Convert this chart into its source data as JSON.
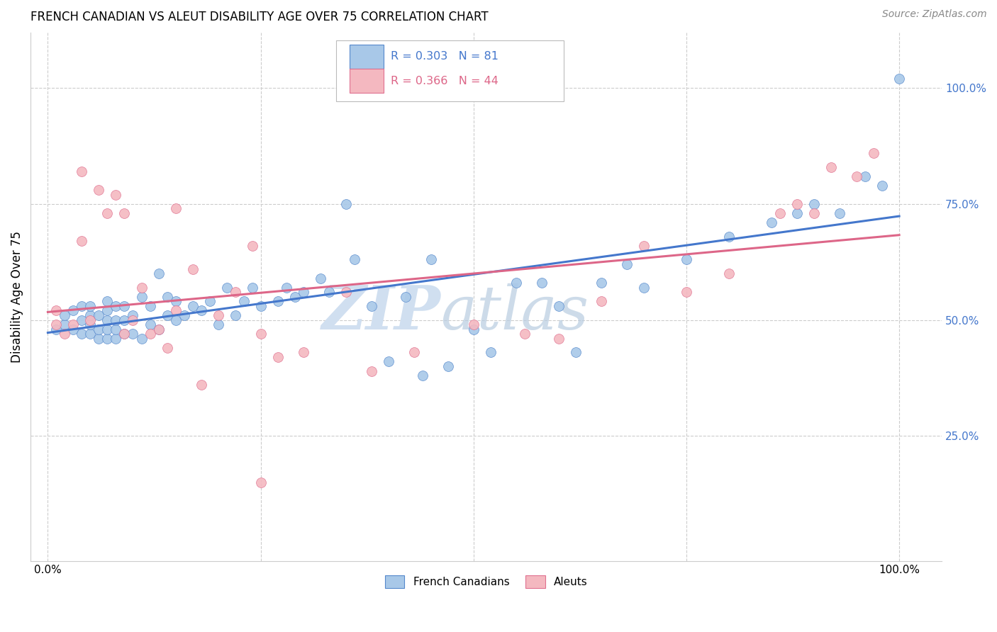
{
  "title": "FRENCH CANADIAN VS ALEUT DISABILITY AGE OVER 75 CORRELATION CHART",
  "source_text": "Source: ZipAtlas.com",
  "ylabel": "Disability Age Over 75",
  "xlim": [
    -0.02,
    1.05
  ],
  "ylim": [
    -0.02,
    1.12
  ],
  "x_ticks": [
    0.0,
    0.25,
    0.5,
    0.75,
    1.0
  ],
  "x_tick_labels": [
    "0.0%",
    "",
    "",
    "",
    "100.0%"
  ],
  "y_ticks": [
    0.25,
    0.5,
    0.75,
    1.0
  ],
  "y_tick_labels": [
    "25.0%",
    "50.0%",
    "75.0%",
    "100.0%"
  ],
  "legend_blue_label": "French Canadians",
  "legend_pink_label": "Aleuts",
  "R_blue": 0.303,
  "N_blue": 81,
  "R_pink": 0.366,
  "N_pink": 44,
  "blue_color": "#a8c8e8",
  "pink_color": "#f4b8c0",
  "blue_edge_color": "#5588cc",
  "pink_edge_color": "#e07090",
  "blue_line_color": "#4477cc",
  "pink_line_color": "#dd6688",
  "watermark_color": "#d0dff0",
  "watermark_zip": "ZIP",
  "watermark_atlas": "atlas",
  "blue_scatter_x": [
    0.01,
    0.02,
    0.02,
    0.03,
    0.03,
    0.04,
    0.04,
    0.04,
    0.05,
    0.05,
    0.05,
    0.05,
    0.06,
    0.06,
    0.06,
    0.07,
    0.07,
    0.07,
    0.07,
    0.07,
    0.08,
    0.08,
    0.08,
    0.08,
    0.09,
    0.09,
    0.09,
    0.1,
    0.1,
    0.11,
    0.11,
    0.12,
    0.12,
    0.13,
    0.13,
    0.14,
    0.14,
    0.15,
    0.15,
    0.16,
    0.17,
    0.18,
    0.19,
    0.2,
    0.21,
    0.22,
    0.23,
    0.24,
    0.25,
    0.27,
    0.28,
    0.29,
    0.3,
    0.32,
    0.33,
    0.35,
    0.38,
    0.4,
    0.42,
    0.44,
    0.45,
    0.47,
    0.5,
    0.52,
    0.55,
    0.58,
    0.6,
    0.62,
    0.65,
    0.68,
    0.7,
    0.75,
    0.8,
    0.85,
    0.88,
    0.9,
    0.93,
    0.96,
    0.98,
    1.0,
    0.36
  ],
  "blue_scatter_y": [
    0.48,
    0.49,
    0.51,
    0.48,
    0.52,
    0.47,
    0.5,
    0.53,
    0.47,
    0.49,
    0.51,
    0.53,
    0.46,
    0.48,
    0.51,
    0.46,
    0.48,
    0.5,
    0.52,
    0.54,
    0.46,
    0.48,
    0.5,
    0.53,
    0.47,
    0.5,
    0.53,
    0.47,
    0.51,
    0.46,
    0.55,
    0.49,
    0.53,
    0.48,
    0.6,
    0.51,
    0.55,
    0.5,
    0.54,
    0.51,
    0.53,
    0.52,
    0.54,
    0.49,
    0.57,
    0.51,
    0.54,
    0.57,
    0.53,
    0.54,
    0.57,
    0.55,
    0.56,
    0.59,
    0.56,
    0.75,
    0.53,
    0.41,
    0.55,
    0.38,
    0.63,
    0.4,
    0.48,
    0.43,
    0.58,
    0.58,
    0.53,
    0.43,
    0.58,
    0.62,
    0.57,
    0.63,
    0.68,
    0.71,
    0.73,
    0.75,
    0.73,
    0.81,
    0.79,
    1.02,
    0.63
  ],
  "pink_scatter_x": [
    0.01,
    0.01,
    0.02,
    0.03,
    0.04,
    0.04,
    0.05,
    0.06,
    0.07,
    0.08,
    0.09,
    0.09,
    0.1,
    0.11,
    0.12,
    0.13,
    0.14,
    0.15,
    0.15,
    0.17,
    0.18,
    0.2,
    0.22,
    0.24,
    0.25,
    0.27,
    0.3,
    0.35,
    0.38,
    0.43,
    0.5,
    0.56,
    0.6,
    0.65,
    0.7,
    0.75,
    0.8,
    0.86,
    0.88,
    0.9,
    0.92,
    0.95,
    0.97,
    0.25
  ],
  "pink_scatter_y": [
    0.49,
    0.52,
    0.47,
    0.49,
    0.82,
    0.67,
    0.5,
    0.78,
    0.73,
    0.77,
    0.47,
    0.73,
    0.5,
    0.57,
    0.47,
    0.48,
    0.44,
    0.74,
    0.52,
    0.61,
    0.36,
    0.51,
    0.56,
    0.66,
    0.47,
    0.42,
    0.43,
    0.56,
    0.39,
    0.43,
    0.49,
    0.47,
    0.46,
    0.54,
    0.66,
    0.56,
    0.6,
    0.73,
    0.75,
    0.73,
    0.83,
    0.81,
    0.86,
    0.15
  ]
}
